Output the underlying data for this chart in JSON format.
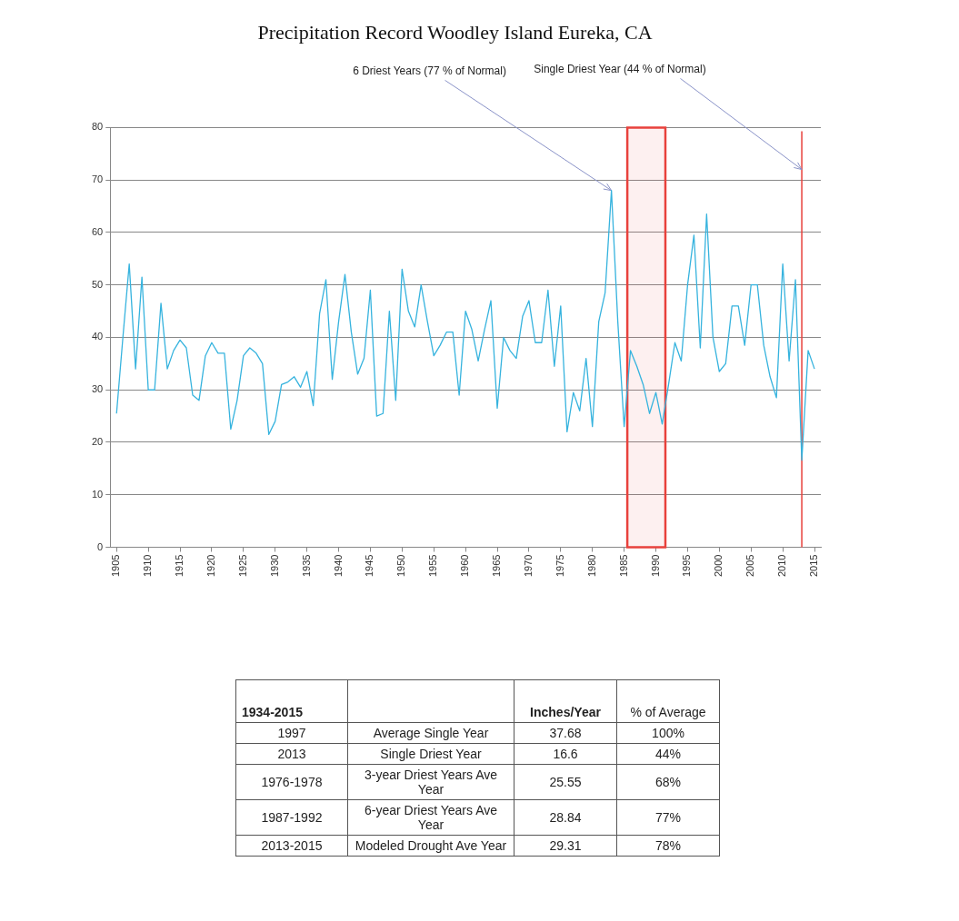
{
  "chart_data": [
    {
      "type": "line",
      "title": "Precipitation Record Woodley Island Eureka, CA",
      "x": [
        1905,
        1906,
        1907,
        1908,
        1909,
        1910,
        1911,
        1912,
        1913,
        1914,
        1915,
        1916,
        1917,
        1918,
        1919,
        1920,
        1921,
        1922,
        1923,
        1924,
        1925,
        1926,
        1927,
        1928,
        1929,
        1930,
        1931,
        1932,
        1933,
        1934,
        1935,
        1936,
        1937,
        1938,
        1939,
        1940,
        1941,
        1942,
        1943,
        1944,
        1945,
        1946,
        1947,
        1948,
        1949,
        1950,
        1951,
        1952,
        1953,
        1954,
        1955,
        1956,
        1957,
        1958,
        1959,
        1960,
        1961,
        1962,
        1963,
        1964,
        1965,
        1966,
        1967,
        1968,
        1969,
        1970,
        1971,
        1972,
        1973,
        1974,
        1975,
        1976,
        1977,
        1978,
        1979,
        1980,
        1981,
        1982,
        1983,
        1984,
        1985,
        1986,
        1987,
        1988,
        1989,
        1990,
        1991,
        1992,
        1993,
        1994,
        1995,
        1996,
        1997,
        1998,
        1999,
        2000,
        2001,
        2002,
        2003,
        2004,
        2005,
        2006,
        2007,
        2008,
        2009,
        2010,
        2011,
        2012,
        2013,
        2014,
        2015
      ],
      "series": [
        {
          "color": "#36b3de",
          "values": [
            25.5,
            40,
            54,
            34,
            51.5,
            30,
            30,
            46.5,
            34,
            37.5,
            39.5,
            38,
            29,
            28,
            36.5,
            39,
            37,
            37,
            22.5,
            28,
            36.5,
            38,
            37,
            35,
            21.5,
            24,
            31,
            31.5,
            32.5,
            30.5,
            33.5,
            27,
            44.5,
            51,
            32,
            43,
            52,
            41,
            33,
            36,
            49,
            25,
            25.5,
            45,
            28,
            53,
            45,
            42,
            50,
            43,
            36.5,
            38.5,
            41,
            41,
            29,
            45,
            41.5,
            35.5,
            41.5,
            47,
            26.5,
            40,
            37.5,
            36,
            44,
            47,
            39,
            39,
            49,
            34.5,
            46,
            22,
            29.5,
            26,
            36,
            23,
            43,
            48.5,
            68,
            43,
            23,
            37.5,
            34.5,
            31,
            25.5,
            29.5,
            23.5,
            31,
            39,
            35.5,
            50,
            59.5,
            38,
            63.5,
            40,
            33.5,
            35,
            46,
            46,
            38.5,
            50,
            50,
            38.5,
            32.5,
            28.5,
            54,
            35.5,
            51,
            16.6,
            37.5,
            34
          ]
        }
      ],
      "xlim": [
        1904,
        2016
      ],
      "xticks": [
        1905,
        1910,
        1915,
        1920,
        1925,
        1930,
        1935,
        1940,
        1945,
        1950,
        1955,
        1960,
        1965,
        1970,
        1975,
        1980,
        1985,
        1990,
        1995,
        2000,
        2005,
        2010,
        2015
      ],
      "ylim": [
        0,
        80
      ],
      "yticks": [
        0,
        10,
        20,
        30,
        40,
        50,
        60,
        70,
        80
      ],
      "grid": "y",
      "legend": false,
      "marker": "none",
      "line_style": "solid",
      "bands": [
        {
          "axis": "x",
          "from": 1985.5,
          "to": 1991.5,
          "color": "#e8413c"
        }
      ],
      "ref_lines": [
        {
          "axis": "x",
          "value": 2013,
          "color": "#e8413c"
        }
      ],
      "annotations": [
        {
          "text": "6 Driest Years (77 % of Normal)",
          "x": 1983,
          "y": 68
        },
        {
          "text": "Single Driest Year (44 % of Normal)",
          "x": 2013,
          "y": 72
        }
      ]
    },
    {
      "type": "other",
      "categories": [
        "1934-2015",
        null,
        "Inches/Year",
        "% of Average"
      ],
      "annotations": [
        "1997",
        "Average Single Year",
        "37.68",
        "100%",
        "2013",
        "Single Driest Year",
        "16.6",
        "44%",
        "1976-1978",
        "3-year Driest Years  Ave Year",
        "25.55",
        "68%",
        "1987-1992",
        "6-year Driest Years  Ave Year",
        "28.84",
        "77%",
        "2013-2015",
        "Modeled Drought  Ave Year",
        "29.31",
        "78%"
      ]
    }
  ]
}
